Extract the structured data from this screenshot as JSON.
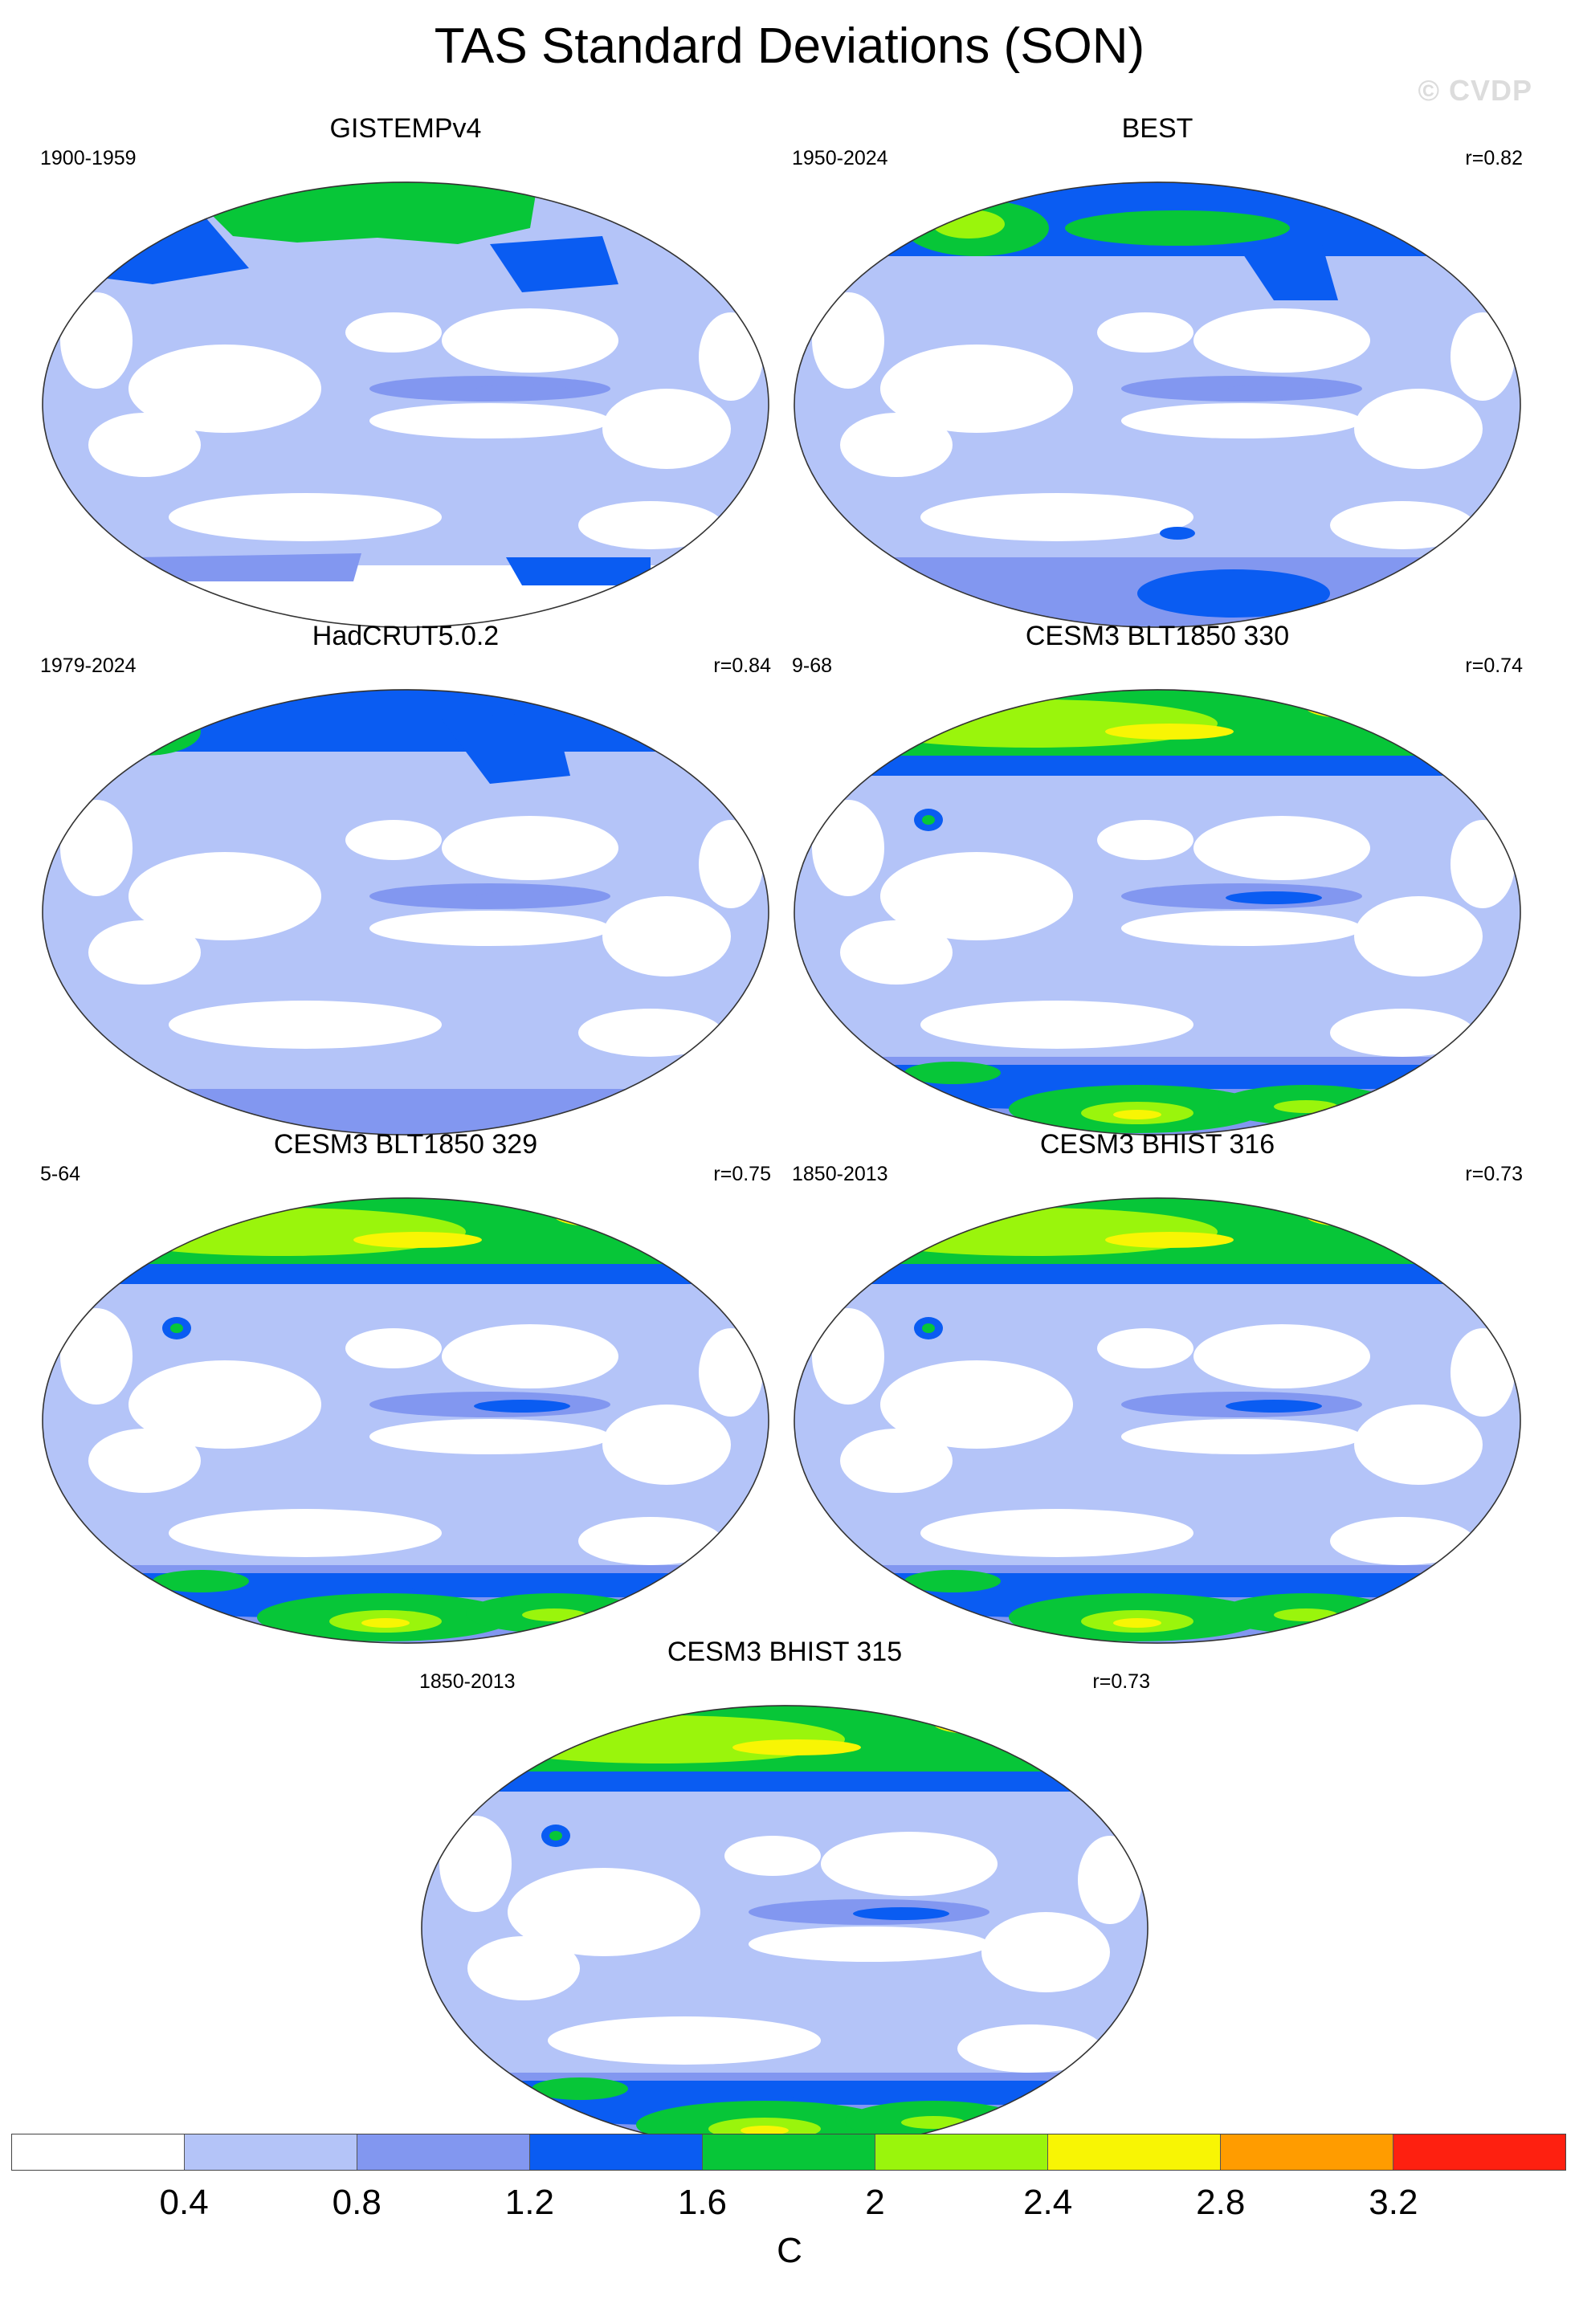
{
  "title": "TAS Standard Deviations (SON)",
  "watermark": "© CVDP",
  "colors": {
    "levels": [
      "#ffffff",
      "#b4c4f8",
      "#8297f0",
      "#0a5cf2",
      "#07c638",
      "#9af50c",
      "#f8f504",
      "#ff9c00",
      "#fe2010"
    ],
    "coast": "#888888",
    "border": "#333333"
  },
  "panels": [
    {
      "name": "GISTEMPv4",
      "period": "1900-1959",
      "r": "",
      "variant": "gistemp"
    },
    {
      "name": "BEST",
      "period": "1950-2024",
      "r": "r=0.82",
      "variant": "best"
    },
    {
      "name": "HadCRUT5.0.2",
      "period": "1979-2024",
      "r": "r=0.84",
      "variant": "had"
    },
    {
      "name": "CESM3 BLT1850 330",
      "period": "9-68",
      "r": "r=0.74",
      "variant": "model"
    },
    {
      "name": "CESM3 BLT1850 329",
      "period": "5-64",
      "r": "r=0.75",
      "variant": "model"
    },
    {
      "name": "CESM3 BHIST 316",
      "period": "1850-2013",
      "r": "r=0.73",
      "variant": "model"
    },
    {
      "name": "CESM3 BHIST 315",
      "period": "1850-2013",
      "r": "r=0.73",
      "variant": "model"
    }
  ],
  "colorbar": {
    "ticks": [
      "0.4",
      "0.8",
      "1.2",
      "1.6",
      "2",
      "2.4",
      "2.8",
      "3.2"
    ],
    "unit": "C"
  }
}
